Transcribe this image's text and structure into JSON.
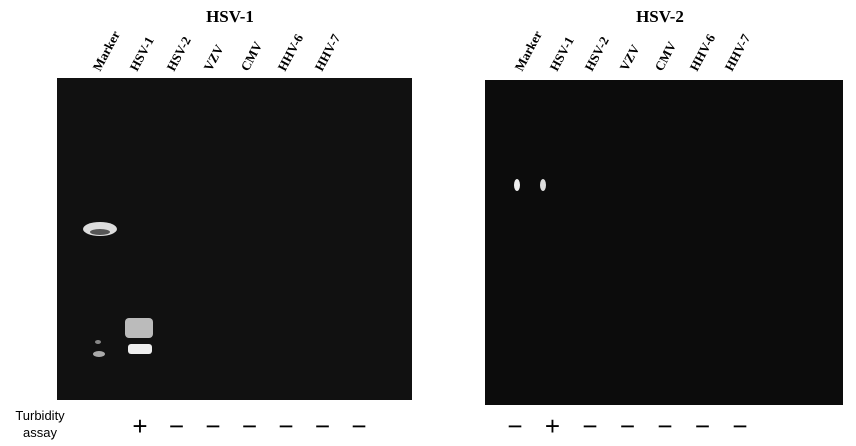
{
  "panels": [
    {
      "title": "HSV-1",
      "lanes": [
        "Marker",
        "HSV-1",
        "HSV-2",
        "VZV",
        "CMV",
        "HHV-6",
        "HHV-7"
      ],
      "results": [
        "+",
        "−",
        "−",
        "−",
        "−",
        "−",
        "−"
      ]
    },
    {
      "title": "HSV-2",
      "lanes": [
        "Marker",
        "HSV-1",
        "HSV-2",
        "VZV",
        "CMV",
        "HHV-6",
        "HHV-7"
      ],
      "results": [
        "−",
        "+",
        "−",
        "−",
        "−",
        "−",
        "−"
      ]
    }
  ],
  "row_label": [
    "Turbidity",
    "assay"
  ]
}
